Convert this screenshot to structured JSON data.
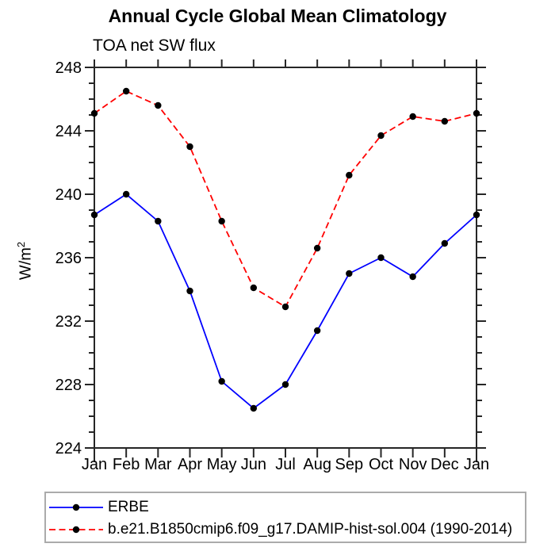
{
  "title": "Annual Cycle Global Mean Climatology",
  "subtitle": "TOA net SW flux",
  "ylabel": {
    "base": "W/m",
    "exp": "2"
  },
  "colors": {
    "erbe_line": "#0000ff",
    "model_line": "#ff0000",
    "marker": "#000000",
    "axis": "#262626",
    "legend_border": "#ababab"
  },
  "legend": {
    "position": "bottom-left",
    "items": [
      {
        "label": "ERBE",
        "color": "#0000ff",
        "style": "solid",
        "marker": "circle"
      },
      {
        "label": "b.e21.B1850cmip6.f09_g17.DAMIP-hist-sol.004 (1990-2014)",
        "color": "#ff0000",
        "style": "dashed",
        "marker": "circle"
      }
    ]
  },
  "chart_data": {
    "type": "line",
    "title": "Annual Cycle Global Mean Climatology",
    "subtitle": "TOA net SW flux",
    "xlabel": "",
    "ylabel": "W/m2",
    "categories": [
      "Jan",
      "Feb",
      "Mar",
      "Apr",
      "May",
      "Jun",
      "Jul",
      "Aug",
      "Sep",
      "Oct",
      "Nov",
      "Dec",
      "Jan"
    ],
    "series": [
      {
        "name": "ERBE",
        "color": "#0000ff",
        "style": "solid",
        "marker": "circle",
        "marker_color": "#000000",
        "values": [
          238.7,
          240.0,
          238.3,
          233.9,
          228.2,
          226.5,
          228.0,
          231.4,
          235.0,
          236.0,
          234.8,
          236.9,
          238.7
        ]
      },
      {
        "name": "b.e21.B1850cmip6.f09_g17.DAMIP-hist-sol.004 (1990-2014)",
        "color": "#ff0000",
        "style": "dashed",
        "marker": "circle",
        "marker_color": "#000000",
        "values": [
          245.1,
          246.5,
          245.6,
          243.0,
          238.3,
          234.1,
          232.9,
          236.6,
          241.2,
          243.7,
          244.9,
          244.6,
          245.1
        ]
      }
    ],
    "ylim": [
      224,
      248
    ],
    "ytick_step": 4,
    "yminor_step": 1,
    "grid": false,
    "legend_position": "bottom-left"
  }
}
